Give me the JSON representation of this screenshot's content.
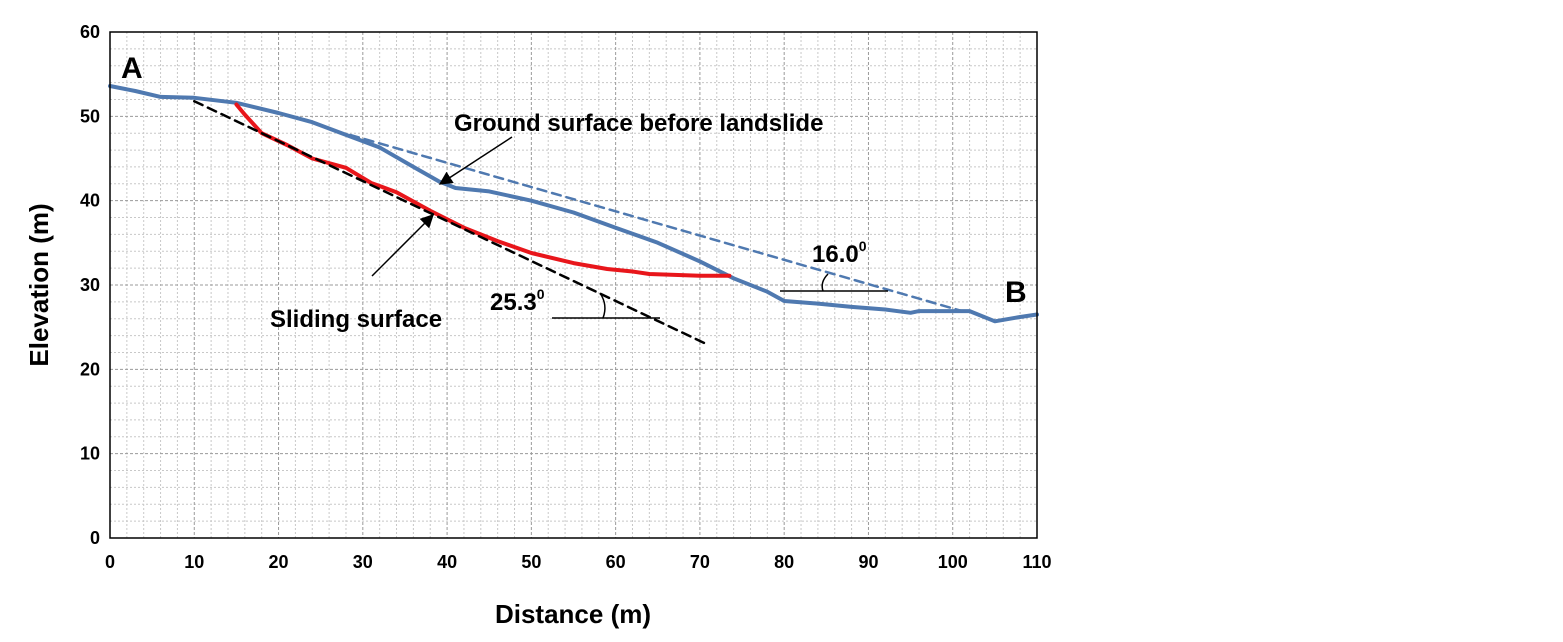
{
  "chart_data": {
    "type": "line",
    "title": "",
    "xlabel": "Distance (m)",
    "ylabel": "Elevation (m)",
    "xlim": [
      0,
      110
    ],
    "ylim": [
      0,
      60
    ],
    "x_ticks": [
      0,
      10,
      20,
      30,
      40,
      50,
      60,
      70,
      80,
      90,
      100,
      110
    ],
    "y_ticks": [
      0,
      10,
      20,
      30,
      40,
      50,
      60
    ],
    "grid": true,
    "minor_grid": true,
    "series": [
      {
        "key": "ground",
        "color": "#4F79B0",
        "style": "solid",
        "x": [
          0,
          3,
          6,
          10,
          15,
          20,
          24,
          28,
          32,
          36,
          39,
          41,
          45,
          50,
          55,
          60,
          65,
          70,
          74,
          78,
          80,
          84,
          88,
          92,
          95,
          96,
          100,
          102,
          105,
          108,
          110
        ],
        "y": [
          53.6,
          53.0,
          52.3,
          52.2,
          51.6,
          50.4,
          49.3,
          47.8,
          46.3,
          44.0,
          42.3,
          41.5,
          41.1,
          40.0,
          38.6,
          36.8,
          35.0,
          32.8,
          30.8,
          29.2,
          28.1,
          27.8,
          27.4,
          27.1,
          26.7,
          26.9,
          26.9,
          26.9,
          25.7,
          26.2,
          26.5
        ]
      },
      {
        "key": "sliding",
        "color": "#E8161B",
        "style": "solid",
        "x": [
          15,
          16,
          18,
          21,
          24,
          28,
          31,
          34,
          38,
          42,
          46,
          50,
          55,
          59,
          62,
          64,
          67,
          70,
          73.5
        ],
        "y": [
          51.4,
          50.2,
          48.0,
          46.6,
          45.0,
          43.9,
          42.1,
          41.0,
          38.8,
          36.8,
          35.2,
          33.8,
          32.6,
          31.9,
          31.6,
          31.3,
          31.2,
          31.1,
          31.1
        ]
      },
      {
        "key": "ground-before",
        "color": "#4F79B0",
        "style": "dashed",
        "x": [
          28.5,
          101.5
        ],
        "y": [
          47.8,
          26.8
        ]
      },
      {
        "key": "sliding-trend",
        "color": "#000000",
        "style": "dashed",
        "x": [
          10,
          71
        ],
        "y": [
          51.8,
          22.9
        ]
      }
    ],
    "annotations": {
      "ground_before_label": "Ground surface before landslide",
      "sliding_label": "Sliding surface",
      "angle_ground": "16.0",
      "angle_sliding": "25.3",
      "degree_mark": "0",
      "point_a": "A",
      "point_b": "B"
    }
  }
}
